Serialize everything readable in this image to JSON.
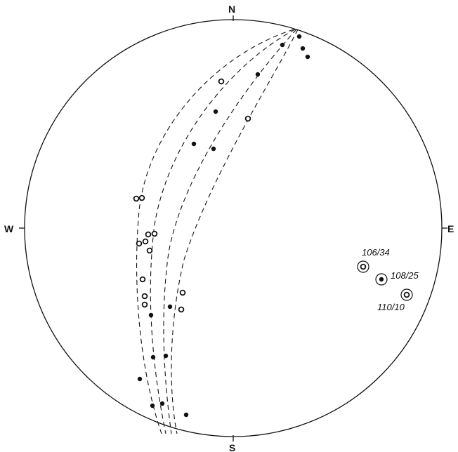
{
  "directions": {
    "north": "N",
    "south": "S",
    "east": "E",
    "west": "W"
  },
  "colors": {
    "ink": "#111111",
    "background": "#ffffff"
  },
  "legend_markers": [
    {
      "id": "filled",
      "description_symbol": "filled-dot"
    },
    {
      "id": "open",
      "description_symbol": "open-circle"
    }
  ],
  "great_circles": [
    {
      "id": "gc-1",
      "style": "dashed"
    },
    {
      "id": "gc-2",
      "style": "dashed"
    },
    {
      "id": "gc-3",
      "style": "dashed"
    },
    {
      "id": "gc-4",
      "style": "dashed"
    }
  ],
  "labeled_poles": [
    {
      "label": "106/34",
      "marker": "ringed-open"
    },
    {
      "label": "108/25",
      "marker": "ringed-filled"
    },
    {
      "label": "110/10",
      "marker": "ringed-open"
    }
  ]
}
